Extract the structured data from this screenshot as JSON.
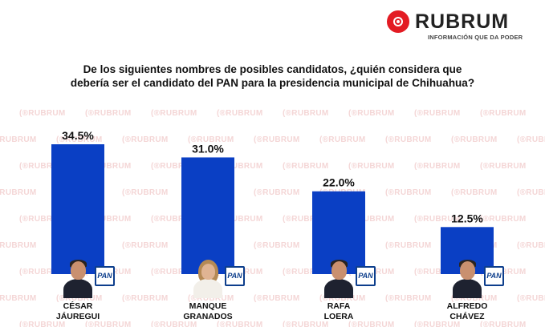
{
  "brand": {
    "name": "RUBRUM",
    "tagline": "INFORMACIÓN QUE DA PODER",
    "watermark_text": "RUBRUM",
    "color": "#e31b23"
  },
  "question": {
    "line1": "De los siguientes nombres de posibles candidatos, ¿quién considera que",
    "line2": "debería ser el candidato del PAN para la presidencia municipal de Chihuahua?"
  },
  "party_badge_text": "PAN",
  "chart_data": {
    "type": "bar",
    "title": "De los siguientes nombres de posibles candidatos, ¿quién considera que debería ser el candidato del PAN para la presidencia municipal de Chihuahua?",
    "categories": [
      "CÉSAR JÁUREGUI",
      "MANQUE GRANADOS",
      "RAFA LOERA",
      "ALFREDO CHÁVEZ"
    ],
    "category_lines": [
      [
        "CÉSAR",
        "JÁUREGUI"
      ],
      [
        "MANQUE",
        "GRANADOS"
      ],
      [
        "RAFA",
        "LOERA"
      ],
      [
        "ALFREDO",
        "CHÁVEZ"
      ]
    ],
    "values": [
      34.5,
      31.0,
      22.0,
      12.5
    ],
    "value_labels": [
      "34.5%",
      "31.0%",
      "22.0%",
      "12.5%"
    ],
    "unit": "%",
    "ylim": [
      0,
      34.5
    ],
    "bar_color": "#0a3fc4",
    "grid": false,
    "legend": "none"
  }
}
